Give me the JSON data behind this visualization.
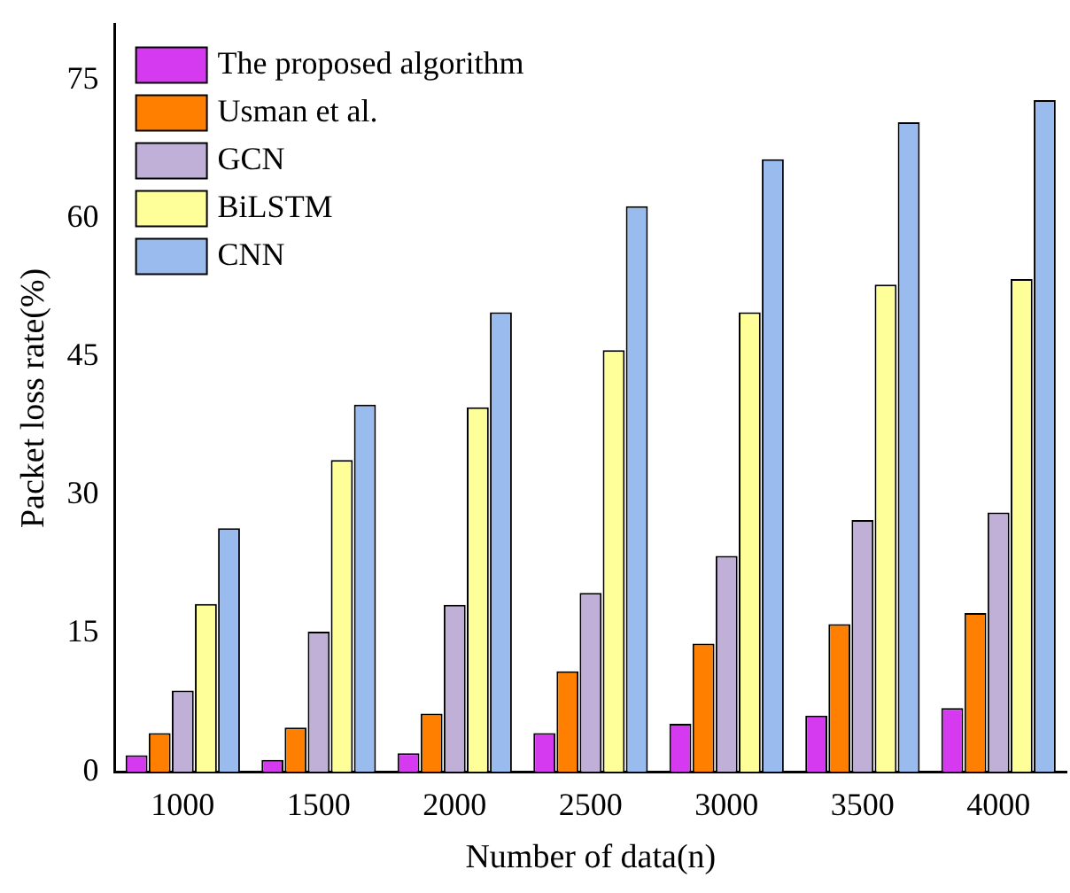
{
  "chart_data": {
    "type": "bar",
    "xlabel": "Number of data(n)",
    "ylabel": "Packet loss rate(%)",
    "categories": [
      "1000",
      "1500",
      "2000",
      "2500",
      "3000",
      "3500",
      "4000"
    ],
    "series": [
      {
        "name": "The proposed algorithm",
        "color": "#d63af0",
        "values": [
          1.8,
          1.3,
          2.0,
          4.2,
          5.2,
          6.1,
          6.9
        ]
      },
      {
        "name": "Usman et al.",
        "color": "#ff8000",
        "values": [
          4.2,
          4.8,
          6.3,
          10.9,
          13.9,
          16.0,
          17.2
        ]
      },
      {
        "name": "GCN",
        "color": "#c0b0d8",
        "values": [
          8.8,
          15.2,
          18.1,
          19.4,
          23.4,
          27.3,
          28.1
        ]
      },
      {
        "name": "BiLSTM",
        "color": "#ffff99",
        "values": [
          18.2,
          33.8,
          39.5,
          45.7,
          49.8,
          52.8,
          53.4
        ]
      },
      {
        "name": "CNN",
        "color": "#99bbee",
        "values": [
          26.4,
          39.8,
          49.8,
          61.3,
          66.4,
          70.4,
          72.8
        ]
      }
    ],
    "ylim": [
      0,
      81
    ],
    "yticks": [
      0,
      15,
      30,
      45,
      60,
      75
    ],
    "grid": false,
    "legend": "top left"
  }
}
